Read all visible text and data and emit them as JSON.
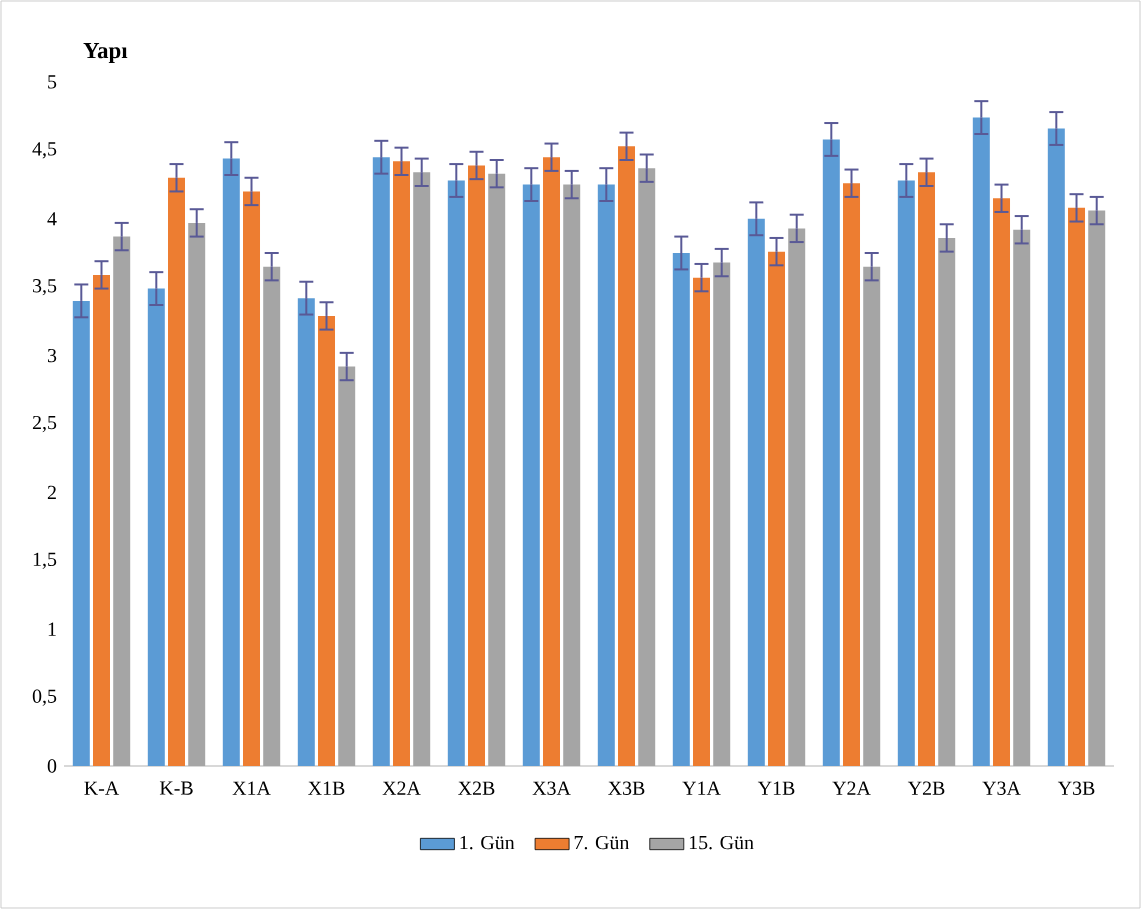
{
  "chart_data": {
    "type": "bar",
    "title": "Yapı",
    "categories": [
      "K-A",
      "K-B",
      "X1A",
      "X1B",
      "X2A",
      "X2B",
      "X3A",
      "X3B",
      "Y1A",
      "Y1B",
      "Y2A",
      "Y2B",
      "Y3A",
      "Y3B"
    ],
    "series": [
      {
        "name": "1. Gün",
        "color": "#5b9bd5",
        "values": [
          3.4,
          3.49,
          4.44,
          3.42,
          4.45,
          4.28,
          4.25,
          4.25,
          3.75,
          4.0,
          4.58,
          4.28,
          4.74,
          4.66
        ],
        "errors": [
          0.12,
          0.12,
          0.12,
          0.12,
          0.12,
          0.12,
          0.12,
          0.12,
          0.12,
          0.12,
          0.12,
          0.12,
          0.12,
          0.12
        ]
      },
      {
        "name": "7. Gün",
        "color": "#ed7d31",
        "values": [
          3.59,
          4.3,
          4.2,
          3.29,
          4.42,
          4.39,
          4.45,
          4.53,
          3.57,
          3.76,
          4.26,
          4.34,
          4.15,
          4.08
        ],
        "errors": [
          0.1,
          0.1,
          0.1,
          0.1,
          0.1,
          0.1,
          0.1,
          0.1,
          0.1,
          0.1,
          0.1,
          0.1,
          0.1,
          0.1
        ]
      },
      {
        "name": "15. Gün",
        "color": "#a5a5a5",
        "values": [
          3.87,
          3.97,
          3.65,
          2.92,
          4.34,
          4.33,
          4.25,
          4.37,
          3.68,
          3.93,
          3.65,
          3.86,
          3.92,
          4.06
        ],
        "errors": [
          0.1,
          0.1,
          0.1,
          0.1,
          0.1,
          0.1,
          0.1,
          0.1,
          0.1,
          0.1,
          0.1,
          0.1,
          0.1,
          0.1
        ]
      }
    ],
    "ylim": [
      0,
      5
    ],
    "yticks": [
      0,
      {
        "value": 0.5,
        "label": "0,5"
      },
      1,
      {
        "value": 1.5,
        "label": "1,5"
      },
      2,
      {
        "value": 2.5,
        "label": "2,5"
      },
      3,
      {
        "value": 3.5,
        "label": "3,5"
      },
      4,
      {
        "value": 4.5,
        "label": "4,5"
      },
      5
    ],
    "legend": "bottom"
  }
}
